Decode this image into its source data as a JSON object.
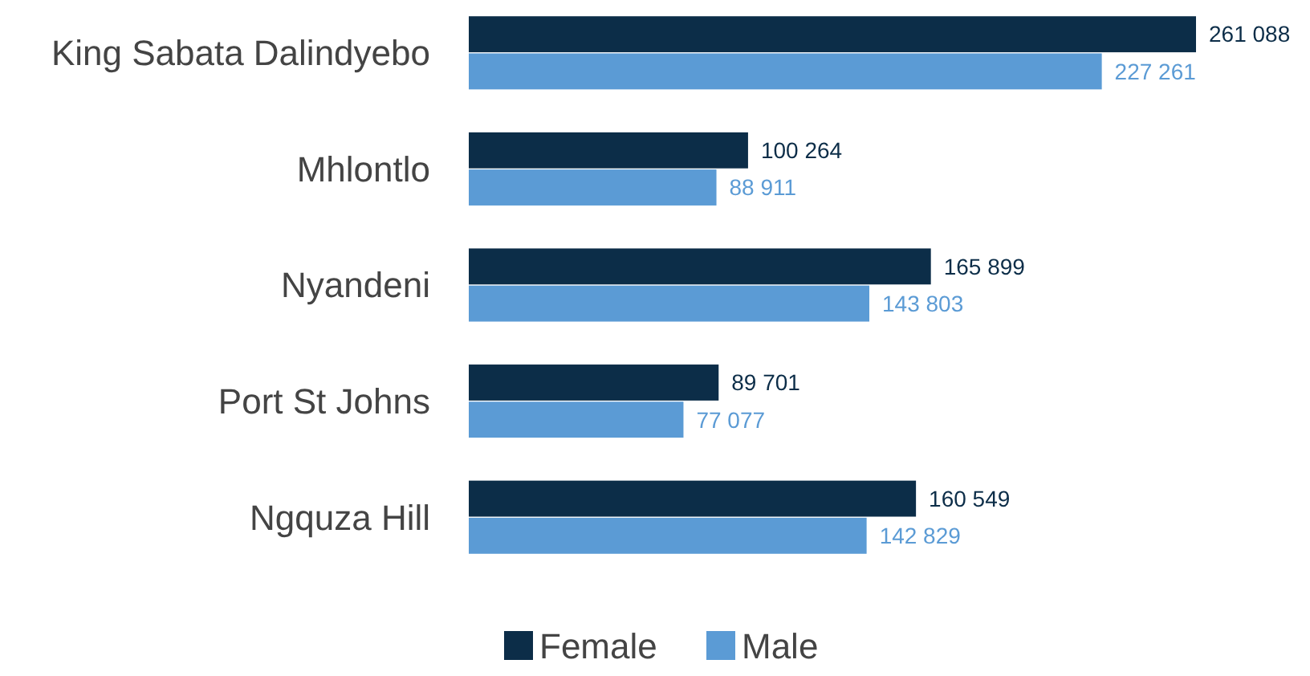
{
  "chart_data": {
    "type": "bar",
    "orientation": "horizontal",
    "categories": [
      "King Sabata Dalindyebo",
      "Mhlontlo",
      "Nyandeni",
      "Port St Johns",
      "Ngquza Hill"
    ],
    "series": [
      {
        "name": "Female",
        "color": "#0c2d48",
        "values": [
          261088,
          100264,
          165899,
          89701,
          160549
        ],
        "value_labels": [
          "261 088",
          "100 264",
          "165 899",
          "89 701",
          "160 549"
        ]
      },
      {
        "name": "Male",
        "color": "#5b9bd5",
        "values": [
          227261,
          88911,
          143803,
          77077,
          142829
        ],
        "value_labels": [
          "227 261",
          "88 911",
          "143 803",
          "77 077",
          "142 829"
        ]
      }
    ],
    "legend": "bottom"
  }
}
